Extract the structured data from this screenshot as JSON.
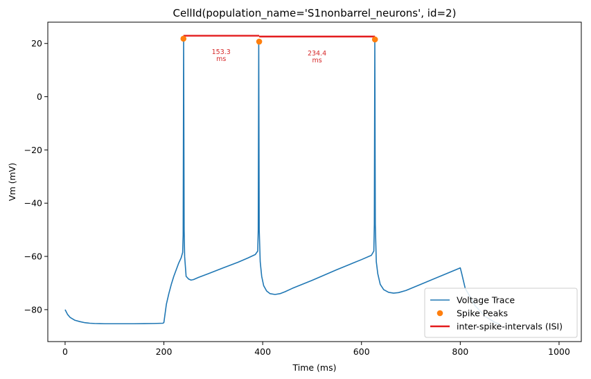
{
  "chart_data": {
    "type": "line",
    "title": "CellId(population_name='S1nonbarrel_neurons', id=2)",
    "xlabel": "Time (ms)",
    "ylabel": "Vm (mV)",
    "xlim": [
      -35,
      1045
    ],
    "ylim": [
      -92,
      28
    ],
    "xticks": [
      0,
      200,
      400,
      600,
      800,
      1000
    ],
    "yticks": [
      -80,
      -60,
      -40,
      -20,
      0,
      20
    ],
    "grid": false,
    "legend_position": "bottom-right",
    "colors": {
      "voltage": "#1f77b4",
      "peaks": "#ff7f0e",
      "isi": "#e31a1c",
      "annotation": "#d62728"
    },
    "series": [
      {
        "name": "Voltage Trace",
        "style": "line",
        "x": [
          0,
          5,
          10,
          20,
          30,
          40,
          50,
          60,
          70,
          80,
          90,
          100,
          120,
          140,
          160,
          180,
          198,
          199,
          200,
          205,
          210,
          215,
          220,
          225,
          230,
          235,
          238,
          239,
          240,
          241,
          242,
          245,
          250,
          255,
          260,
          270,
          290,
          320,
          350,
          370,
          385,
          390,
          391,
          392,
          393,
          395,
          398,
          402,
          408,
          415,
          425,
          435,
          445,
          460,
          500,
          550,
          600,
          620,
          625,
          626,
          627,
          628,
          630,
          633,
          638,
          645,
          655,
          665,
          675,
          690,
          720,
          760,
          790,
          800,
          803,
          810,
          830,
          850,
          870,
          880
        ],
        "y": [
          -80,
          -81.8,
          -82.9,
          -84,
          -84.5,
          -84.9,
          -85.1,
          -85.2,
          -85.25,
          -85.3,
          -85.3,
          -85.3,
          -85.3,
          -85.3,
          -85.25,
          -85.2,
          -85.1,
          -85.0,
          -84.8,
          -78,
          -74,
          -70.5,
          -67.5,
          -65,
          -62.5,
          -60.5,
          -58.5,
          -52,
          22,
          -50,
          -60,
          -67.5,
          -68.5,
          -68.9,
          -68.7,
          -67.9,
          -66.5,
          -64.3,
          -62.2,
          -60.6,
          -59.3,
          -58,
          -50,
          20.5,
          -50,
          -62,
          -67.5,
          -71,
          -73,
          -74,
          -74.3,
          -74,
          -73.3,
          -72,
          -69,
          -65,
          -61.2,
          -59.6,
          -58,
          -48,
          21.4,
          -48,
          -62,
          -66.5,
          -70.5,
          -72.5,
          -73.5,
          -73.8,
          -73.6,
          -72.8,
          -70.5,
          -67.4,
          -65.1,
          -64.3,
          -66.5,
          -72,
          -78.5,
          -82.5,
          -84.8,
          -85.5
        ]
      },
      {
        "name": "Spike Peaks",
        "style": "markers",
        "x": [
          239.6,
          392.9,
          627.3
        ],
        "y": [
          21.8,
          20.7,
          21.5
        ]
      },
      {
        "name": "inter-spike-intervals (ISI)",
        "style": "line",
        "segments": [
          {
            "x": [
              239.6,
              392.9
            ],
            "y": [
              22.9,
              22.9
            ]
          },
          {
            "x": [
              392.9,
              627.3
            ],
            "y": [
              22.6,
              22.6
            ]
          }
        ]
      }
    ],
    "annotations": [
      {
        "value": "153.3",
        "unit": "ms",
        "x": 316,
        "y": 16.0
      },
      {
        "value": "234.4",
        "unit": "ms",
        "x": 510,
        "y": 15.5
      }
    ]
  }
}
